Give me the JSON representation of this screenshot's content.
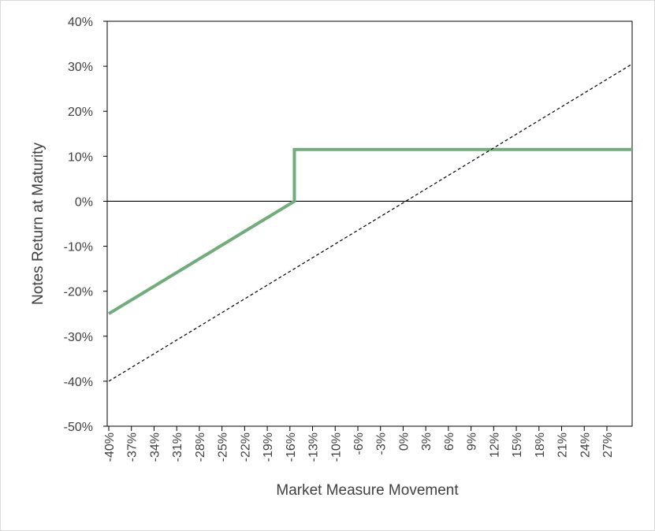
{
  "chart_data": {
    "type": "line",
    "x_label": "Market Measure Movement",
    "y_label": "Notes Return at Maturity",
    "xlim": [
      -40,
      30.5
    ],
    "ylim": [
      -50,
      40
    ],
    "xticks": [
      {
        "value": -40,
        "label": "-40%"
      },
      {
        "value": -36.95,
        "label": "-37%"
      },
      {
        "value": -33.9,
        "label": "-34%"
      },
      {
        "value": -30.85,
        "label": "-31%"
      },
      {
        "value": -27.8,
        "label": "-28%"
      },
      {
        "value": -24.75,
        "label": "-25%"
      },
      {
        "value": -21.7,
        "label": "-22%"
      },
      {
        "value": -18.65,
        "label": "-19%"
      },
      {
        "value": -15.6,
        "label": "-16%"
      },
      {
        "value": -12.55,
        "label": "-13%"
      },
      {
        "value": -9.5,
        "label": "-10%"
      },
      {
        "value": -6.45,
        "label": "-6%"
      },
      {
        "value": -3.4,
        "label": "-3%"
      },
      {
        "value": -0.35,
        "label": "0%"
      },
      {
        "value": 2.7,
        "label": "3%"
      },
      {
        "value": 5.75,
        "label": "6%"
      },
      {
        "value": 8.8,
        "label": "9%"
      },
      {
        "value": 11.85,
        "label": "12%"
      },
      {
        "value": 14.9,
        "label": "15%"
      },
      {
        "value": 17.95,
        "label": "18%"
      },
      {
        "value": 21,
        "label": "21%"
      },
      {
        "value": 24.05,
        "label": "24%"
      },
      {
        "value": 27.1,
        "label": "27%"
      }
    ],
    "yticks": [
      {
        "value": -50,
        "label": "-50%"
      },
      {
        "value": -40,
        "label": "-40%"
      },
      {
        "value": -30,
        "label": "-30%"
      },
      {
        "value": -20,
        "label": "-20%"
      },
      {
        "value": -10,
        "label": "-10%"
      },
      {
        "value": 0,
        "label": "0%"
      },
      {
        "value": 10,
        "label": "10%"
      },
      {
        "value": 20,
        "label": "20%"
      },
      {
        "value": 30,
        "label": "30%"
      },
      {
        "value": 40,
        "label": "40%"
      }
    ],
    "zero_line": true,
    "series": [
      {
        "color": "#71ad7b",
        "style": "solid",
        "x": [
          -40,
          -15,
          -15,
          30.5
        ],
        "values": [
          -25,
          0,
          11.5,
          11.5
        ]
      },
      {
        "color": "#000000",
        "style": "dashed",
        "x": [
          -40,
          30.5
        ],
        "values": [
          -40,
          30.5
        ]
      }
    ]
  }
}
